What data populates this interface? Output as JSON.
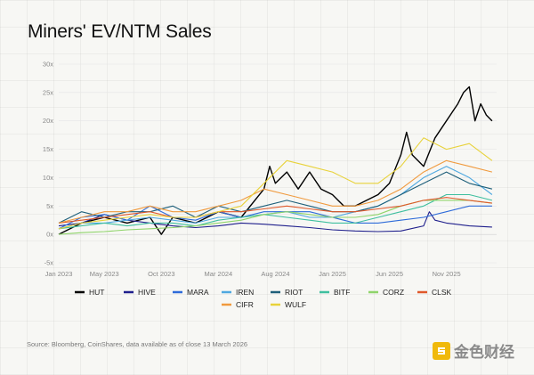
{
  "chart_data": {
    "type": "line",
    "title": "Miners' EV/NTM Sales",
    "xlabel": "",
    "ylabel": "",
    "ylim": [
      -5,
      30
    ],
    "y_ticks": [
      "30x",
      "25x",
      "20x",
      "15x",
      "10x",
      "5x",
      "0x",
      "-5x"
    ],
    "y_tick_values": [
      30,
      25,
      20,
      15,
      10,
      5,
      0,
      -5
    ],
    "x_tick_labels": [
      "Jan 2023",
      "May 2023",
      "Oct 2023",
      "Mar 2024",
      "Aug 2024",
      "Jan 2025",
      "Jun 2025",
      "Nov 2025"
    ],
    "x_tick_values": [
      0,
      4,
      9,
      14,
      19,
      24,
      29,
      34
    ],
    "x_range": [
      0,
      38.4
    ],
    "source": "Source: Bloomberg, CoinShares, data available as of close 13 March 2026",
    "series": [
      {
        "name": "HUT",
        "color": "#000000",
        "x": [
          0,
          2,
          4,
          6,
          8,
          9,
          10,
          12,
          14,
          16,
          18,
          18.5,
          19,
          20,
          21,
          22,
          23,
          24,
          25,
          26,
          27,
          28,
          29,
          30,
          30.5,
          31,
          32,
          33,
          34,
          35,
          35.5,
          36,
          36.5,
          37,
          37.5,
          38
        ],
        "values": [
          0,
          2,
          3,
          2,
          3,
          0,
          3,
          2,
          4,
          3,
          8,
          12,
          9,
          11,
          8,
          11,
          8,
          7,
          5,
          5,
          6,
          7,
          9,
          14,
          18,
          14,
          12,
          17,
          20,
          23,
          25,
          26,
          20,
          23,
          21,
          20
        ]
      },
      {
        "name": "HIVE",
        "color": "#1f1f8c",
        "x": [
          0,
          2,
          4,
          6,
          8,
          10,
          12,
          14,
          16,
          18,
          20,
          22,
          24,
          26,
          28,
          30,
          32,
          32.5,
          33,
          34,
          36,
          38
        ],
        "values": [
          1.5,
          2,
          3.5,
          2.5,
          2,
          1.5,
          1.2,
          1.5,
          2,
          1.8,
          1.5,
          1.2,
          0.8,
          0.6,
          0.5,
          0.6,
          1.5,
          4,
          2.5,
          2,
          1.5,
          1.3
        ]
      },
      {
        "name": "MARA",
        "color": "#2e6bd9",
        "x": [
          0,
          2,
          4,
          6,
          8,
          10,
          12,
          14,
          16,
          18,
          20,
          22,
          24,
          26,
          28,
          30,
          32,
          34,
          36,
          38
        ],
        "values": [
          1,
          3,
          3.5,
          2.5,
          5,
          3,
          2.5,
          4,
          3,
          4,
          4,
          4,
          3,
          2,
          2,
          2.5,
          3,
          4,
          5,
          5
        ]
      },
      {
        "name": "IREN",
        "color": "#4fa8e0",
        "x": [
          0,
          2,
          4,
          6,
          8,
          10,
          12,
          14,
          16,
          18,
          20,
          22,
          24,
          26,
          28,
          30,
          32,
          34,
          36,
          38
        ],
        "values": [
          1,
          2,
          2,
          2.5,
          3,
          2.5,
          2,
          3,
          3,
          3.5,
          4,
          3,
          3,
          4,
          5,
          7,
          10,
          12,
          10,
          7
        ]
      },
      {
        "name": "RIOT",
        "color": "#1e5f7a",
        "x": [
          0,
          2,
          4,
          6,
          8,
          10,
          12,
          14,
          16,
          18,
          20,
          22,
          24,
          26,
          28,
          30,
          32,
          34,
          36,
          38
        ],
        "values": [
          2,
          4,
          3,
          4,
          4,
          5,
          3,
          5,
          4,
          5,
          6,
          5,
          4,
          4,
          5,
          7,
          9,
          11,
          9,
          8
        ]
      },
      {
        "name": "BITF",
        "color": "#3fbf9f",
        "x": [
          0,
          2,
          4,
          6,
          8,
          10,
          12,
          14,
          16,
          18,
          20,
          22,
          24,
          26,
          28,
          30,
          32,
          34,
          36,
          38
        ],
        "values": [
          1,
          1.5,
          2,
          1.5,
          2,
          2,
          1.5,
          2.5,
          3,
          3.5,
          3,
          2.5,
          2,
          2,
          3,
          4,
          5,
          7,
          7,
          6
        ]
      },
      {
        "name": "CORZ",
        "color": "#8fd46a",
        "x": [
          0,
          2,
          4,
          6,
          8,
          10,
          12,
          14,
          16,
          18,
          20,
          22,
          24,
          26,
          28,
          30,
          32,
          34,
          36,
          38
        ],
        "values": [
          0,
          0.3,
          0.5,
          0.8,
          1,
          1.2,
          1.5,
          2,
          2.5,
          3.5,
          4,
          3.5,
          3,
          3,
          3.5,
          5,
          6,
          6,
          6,
          5.5
        ]
      },
      {
        "name": "CLSK",
        "color": "#e0582a",
        "x": [
          0,
          2,
          4,
          6,
          8,
          10,
          12,
          14,
          16,
          18,
          20,
          22,
          24,
          26,
          28,
          30,
          32,
          34,
          36,
          38
        ],
        "values": [
          2,
          2.5,
          3,
          3.5,
          4,
          3,
          3,
          4,
          4,
          4.5,
          5,
          4.5,
          4,
          4,
          4.5,
          5,
          6,
          6.5,
          6,
          5.5
        ]
      },
      {
        "name": "CIFR",
        "color": "#f09a3e",
        "x": [
          0,
          2,
          4,
          6,
          8,
          10,
          12,
          14,
          16,
          18,
          20,
          22,
          24,
          26,
          28,
          30,
          32,
          34,
          36,
          38
        ],
        "values": [
          2,
          3,
          4,
          4,
          5,
          4,
          4,
          5,
          6,
          8,
          7,
          6,
          5,
          5,
          6,
          8,
          11,
          13,
          12,
          11
        ]
      },
      {
        "name": "WULF",
        "color": "#e8d23a",
        "x": [
          0,
          2,
          4,
          6,
          8,
          10,
          12,
          14,
          16,
          18,
          20,
          22,
          24,
          26,
          28,
          30,
          32,
          34,
          36,
          38
        ],
        "values": [
          1,
          2,
          2.5,
          3,
          3.5,
          3,
          3,
          4,
          5,
          9,
          13,
          12,
          11,
          9,
          9,
          12,
          17,
          15,
          16,
          13
        ]
      }
    ]
  }
}
